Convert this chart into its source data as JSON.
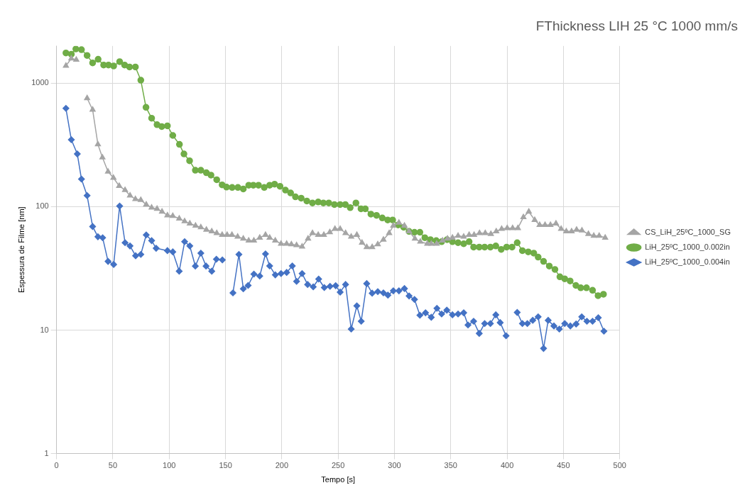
{
  "chart_data": {
    "type": "line",
    "title": "FThickness LIH 25 °C 1000 mm/s",
    "xlabel": "Tempo [s]",
    "ylabel": "Espessura de Filme [nm]",
    "log": "y",
    "grid": true,
    "legend": "right",
    "xlim": [
      0,
      500
    ],
    "xticks": [
      0,
      50,
      100,
      150,
      200,
      250,
      300,
      350,
      400,
      450,
      500
    ],
    "ylim": [
      1,
      2000
    ],
    "yticks": [
      1,
      10,
      100,
      1000
    ],
    "series": [
      {
        "name": "CS_LiH_25ºC_1000_SG",
        "color": "#a5a5a5",
        "marker": "triangle",
        "x": [
          8.3,
          13.1,
          17.5,
          22,
          27.1,
          32.0,
          36.7,
          40.7,
          45.7,
          50.5,
          55.6,
          60.8,
          65.2,
          70.0,
          74.8,
          79.6,
          84.4,
          89.2,
          93.6,
          98.4,
          103.2,
          108.9,
          113.7,
          118.3,
          123.4,
          128.1,
          133.0,
          137.8,
          142.2,
          147.0,
          151.4,
          155.7,
          160.8,
          165.8,
          170.6,
          175.2,
          180.4,
          185.5,
          189.2,
          194.2,
          199.3,
          204.3,
          208.5,
          213.1,
          218.0,
          223.3,
          227.2,
          232.3,
          237.3,
          242.6,
          247.2,
          251.8,
          256.6,
          261.6,
          266.6,
          271.2,
          275.4,
          280.2,
          285.2,
          290.2,
          295.3,
          299.0,
          304.0,
          308.9,
          313.0,
          318.2,
          323.0,
          329.2,
          332.7,
          337.5,
          342.7,
          347.1,
          351.5,
          356.5,
          361.5,
          366.3,
          370.7,
          375.5,
          380.6,
          385.6,
          390.4,
          395.2,
          400.1,
          404.9,
          409.6,
          414.5,
          419.3,
          424.5,
          428.9,
          433.7,
          438.5,
          443.4,
          448.0,
          452.6,
          457.3,
          461.7,
          466.5,
          472.2,
          477.0,
          481.8,
          487.1
        ],
        "values": [
          1383,
          1582,
          1546,
          null,
          755,
          609,
          319,
          250,
          192,
          171,
          147,
          136,
          123,
          115,
          113,
          104,
          98,
          96,
          91,
          85,
          84,
          80,
          76,
          73,
          70,
          68,
          65,
          63,
          61,
          59,
          59,
          59,
          57,
          55,
          53,
          53,
          56,
          59,
          56,
          53,
          50,
          50,
          49.5,
          48.7,
          47.4,
          55,
          61,
          59,
          59,
          62,
          66,
          66,
          61,
          57,
          59,
          51,
          47,
          47,
          49.5,
          54,
          61,
          70,
          74,
          70,
          63,
          55,
          52,
          50,
          50,
          50,
          53,
          55,
          56,
          58,
          57,
          59,
          59,
          61,
          61,
          60,
          63,
          66,
          67,
          67,
          67,
          82,
          91,
          78,
          71,
          71,
          71,
          73,
          66,
          63,
          63,
          65,
          64,
          60,
          58,
          58,
          56
        ]
      },
      {
        "name": "LiH_25ºC_1000_0.002in",
        "color": "#70ad47",
        "marker": "circle",
        "x": [
          8.3,
          13.1,
          17.1,
          22.1,
          27.1,
          32.0,
          36.9,
          41.8,
          46.1,
          50.7,
          56.0,
          60.4,
          64.8,
          70.0,
          74.8,
          79.4,
          84.4,
          89.2,
          93.4,
          98.4,
          103.2,
          109.1,
          113.1,
          118.1,
          123.2,
          128.1,
          133.0,
          137.1,
          142.2,
          147.0,
          150.9,
          155.9,
          161.0,
          165.8,
          170.6,
          174.7,
          179.3,
          184.4,
          189.2,
          193.6,
          198.4,
          203.2,
          207.8,
          212.1,
          217.2,
          222.2,
          227.2,
          232.3,
          236.9,
          241.7,
          246.7,
          251.8,
          256.4,
          260.7,
          265.8,
          270.3,
          274.1,
          279.1,
          284.1,
          289.2,
          294.0,
          298.4,
          303.3,
          308.2,
          313.0,
          317.8,
          322.6,
          327.0,
          332.0,
          337.1,
          341.9,
          346.7,
          351.5,
          356.5,
          361.5,
          366.3,
          370.3,
          375.3,
          380.1,
          385.2,
          390.0,
          394.8,
          399.6,
          404.4,
          409.0,
          413.6,
          418.8,
          423.7,
          427.6,
          432.4,
          437.5,
          442.5,
          446.9,
          451.2,
          456.0,
          461.1,
          465.4,
          470.5,
          475.9,
          480.8,
          485.6
        ],
        "values": [
          1754,
          1714,
          1890,
          1866,
          1676,
          1459,
          1560,
          1401,
          1401,
          1377,
          1493,
          1401,
          1351,
          1351,
          1057,
          637,
          520,
          461,
          445,
          451,
          377,
          319,
          267,
          235,
          197,
          197,
          188,
          180,
          165,
          150,
          144,
          143,
          143,
          139,
          149,
          149,
          149,
          143,
          149,
          152,
          146,
          136,
          129,
          120,
          117,
          111,
          107,
          109,
          107,
          107,
          104,
          104,
          104,
          98,
          107,
          96,
          96,
          87,
          85,
          81,
          78,
          78,
          71,
          68,
          63,
          62,
          62,
          56,
          54,
          53,
          52,
          54,
          52,
          51,
          50,
          52,
          47,
          47,
          47,
          47,
          48,
          45,
          47,
          47,
          51,
          44,
          43,
          42,
          39,
          36,
          33,
          31,
          27,
          26,
          25,
          23,
          22,
          22,
          21,
          19,
          19.5
        ]
      },
      {
        "name": "LiH_25ºC_1000_0.004in",
        "color": "#4472c4",
        "marker": "diamond",
        "x": [
          8.3,
          13.1,
          18.4,
          22.1,
          27.1,
          32.0,
          36.7,
          40.9,
          45.7,
          50.7,
          56.0,
          60.8,
          65.2,
          70.2,
          74.8,
          79.6,
          84.4,
          88.4,
          98.4,
          103.2,
          108.9,
          113.7,
          118.3,
          123.2,
          128.1,
          132.7,
          137.8,
          141.9,
          147.2,
          152,
          156.6,
          161.9,
          165.8,
          170.1,
          175.2,
          180.4,
          185.5,
          189.2,
          194.2,
          199.3,
          204.3,
          209.3,
          213.1,
          218.0,
          222.9,
          227.9,
          232.7,
          237.7,
          242.8,
          247.8,
          251.8,
          256.6,
          261.6,
          266.6,
          270.5,
          275.4,
          280.2,
          285.2,
          290.2,
          294.2,
          299.0,
          304.0,
          308.9,
          313.0,
          317.8,
          322.6,
          327.6,
          332.7,
          337.7,
          341.9,
          346.5,
          351.5,
          356.5,
          361.5,
          365.3,
          370.3,
          375.3,
          380.1,
          385.2,
          390.0,
          393.9,
          399.1,
          404,
          409.0,
          413.6,
          418.0,
          422.8,
          427.6,
          432.4,
          436.5,
          441.6,
          446.4,
          451.2,
          456.2,
          461.3,
          466.3,
          470.9,
          475.9,
          481.0,
          486.0
        ],
        "values": [
          625,
          348,
          267,
          167,
          123,
          69,
          57,
          56,
          36,
          34,
          101,
          51,
          48,
          40,
          41,
          59,
          53,
          46,
          44,
          43,
          30,
          52,
          48,
          33,
          42,
          33,
          30,
          37.5,
          37,
          null,
          20,
          41,
          21.6,
          23,
          28.4,
          27.4,
          41.4,
          33.1,
          28.0,
          28.7,
          29.3,
          33.1,
          24.8,
          28.7,
          23.4,
          22.4,
          25.9,
          22.1,
          22.6,
          22.9,
          20.3,
          23.4,
          10.2,
          15.7,
          11.8,
          23.8,
          19.9,
          20.5,
          20.0,
          19.2,
          20.8,
          20.8,
          21.7,
          18.9,
          17.7,
          13.2,
          13.8,
          12.7,
          15.0,
          13.5,
          14.5,
          13.3,
          13.5,
          13.8,
          11.0,
          11.8,
          9.4,
          11.3,
          11.3,
          13.3,
          11.5,
          9.0,
          null,
          13.9,
          11.3,
          11.3,
          12.0,
          12.8,
          7.1,
          12.0,
          10.8,
          10.2,
          11.3,
          10.8,
          11.2,
          12.8,
          11.8,
          11.8,
          12.6,
          9.8
        ]
      }
    ]
  }
}
